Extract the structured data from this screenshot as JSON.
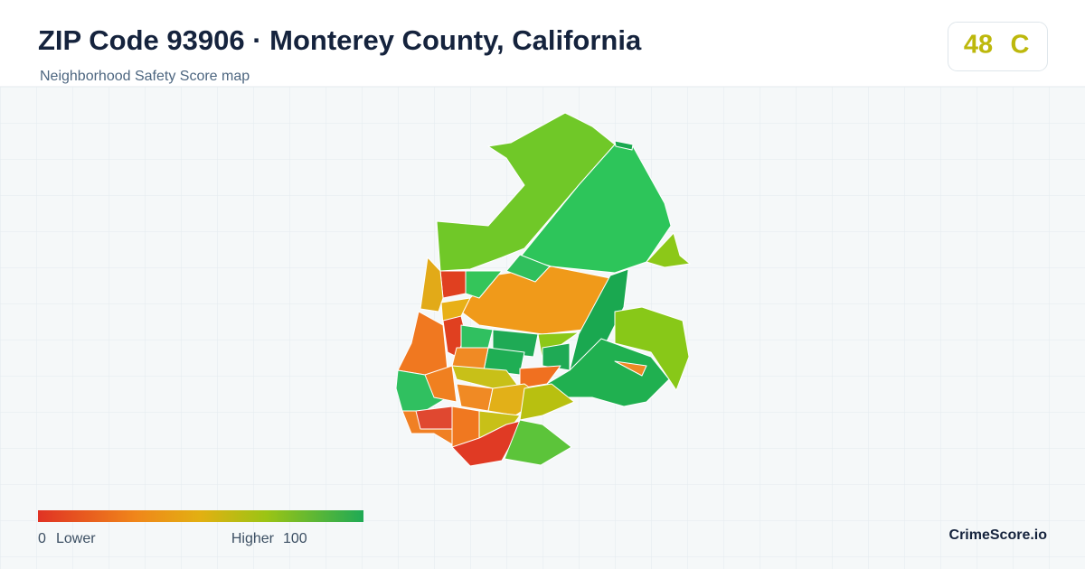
{
  "header": {
    "title": "ZIP Code 93906 · Monterey County, California",
    "subtitle": "Neighborhood Safety Score map"
  },
  "score": {
    "value": 48,
    "grade": "C"
  },
  "legend": {
    "min": 0,
    "min_label": "Lower",
    "max_label": "Higher",
    "max": 100
  },
  "brand": "CrimeScore.io"
}
